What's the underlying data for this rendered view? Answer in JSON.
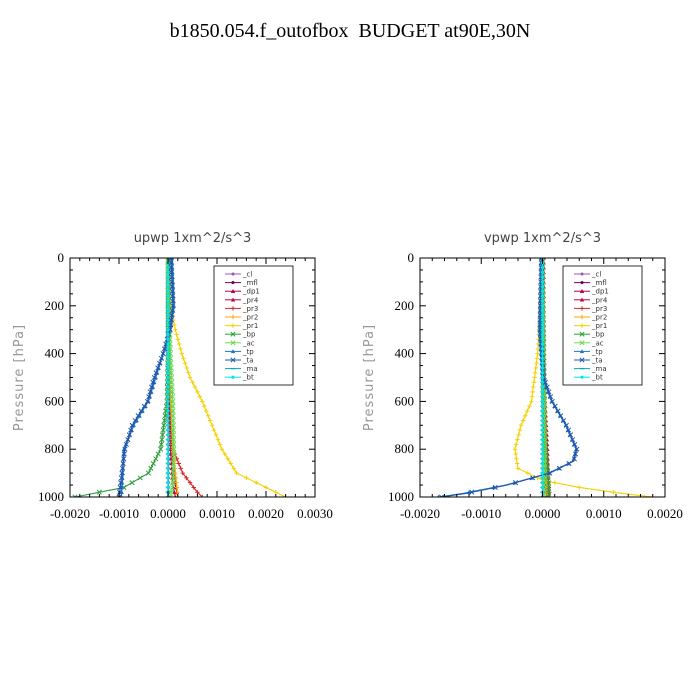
{
  "title": "b1850.054.f_outofbox  BUDGET at90E,30N",
  "chart_data": [
    {
      "type": "line",
      "title": "upwp   1xm^2/s^3",
      "ylabel": "Pressure  [hPa]",
      "xlim": [
        -0.002,
        0.003
      ],
      "ylim": [
        1000,
        0
      ],
      "xticks": [
        -0.002,
        -0.001,
        0.0,
        0.001,
        0.002,
        0.003
      ],
      "xtick_labels": [
        "-0.0020",
        "-0.0010",
        "0.0000",
        "0.0010",
        "0.0020",
        "0.0030"
      ],
      "yticks": [
        0,
        200,
        400,
        600,
        800,
        1000
      ],
      "ytick_labels": [
        "0",
        "200",
        "400",
        "600",
        "800",
        "1000"
      ],
      "legend_position": "top-right",
      "series": [
        {
          "name": "_cl",
          "color": "#9b59b6",
          "marker": "circle",
          "x": [
            1e-05,
            1e-05,
            1e-05,
            1e-05,
            1e-05,
            1e-05
          ],
          "y": [
            0,
            200,
            400,
            600,
            800,
            1000
          ]
        },
        {
          "name": "_mfl",
          "color": "#7b0066",
          "marker": "circle",
          "x": [
            0.0,
            0.0,
            0.0,
            0.0,
            0.0,
            0.0
          ],
          "y": [
            0,
            200,
            400,
            600,
            800,
            1000
          ]
        },
        {
          "name": "_dp1",
          "color": "#b0004f",
          "marker": "tri",
          "x": [
            2e-05,
            2e-05,
            3e-05,
            4e-05,
            8e-05,
            0.00015,
            0.0002
          ],
          "y": [
            0,
            200,
            400,
            600,
            800,
            950,
            1000
          ]
        },
        {
          "name": "_pr4",
          "color": "#c0003a",
          "marker": "tri",
          "x": [
            0.0,
            0.0,
            0.0,
            2e-05,
            5e-05,
            0.0001,
            0.00015
          ],
          "y": [
            0,
            200,
            400,
            600,
            800,
            950,
            1000
          ]
        },
        {
          "name": "_pr3",
          "color": "#d62828",
          "marker": "plus",
          "x": [
            0.0,
            0.0,
            1e-05,
            5e-05,
            0.0001,
            0.0003,
            0.0006,
            0.0007
          ],
          "y": [
            0,
            200,
            400,
            600,
            800,
            900,
            980,
            1000
          ]
        },
        {
          "name": "_pr2",
          "color": "#ffa500",
          "marker": "plus",
          "x": [
            0.0,
            1e-05,
            2e-05,
            5e-05,
            0.0001,
            0.0002
          ],
          "y": [
            0,
            200,
            400,
            600,
            800,
            1000
          ]
        },
        {
          "name": "_pr1",
          "color": "#f5d000",
          "marker": "plus",
          "x": [
            -2e-05,
            5e-05,
            0.00015,
            0.00028,
            0.00045,
            0.0007,
            0.0009,
            0.0011,
            0.0014,
            0.0024
          ],
          "y": [
            0,
            200,
            300,
            400,
            500,
            600,
            700,
            800,
            900,
            1000
          ]
        },
        {
          "name": "_bp",
          "color": "#2e9e3a",
          "marker": "cross",
          "x": [
            0.0,
            0.0,
            0.0,
            -2e-05,
            -0.00015,
            -0.0004,
            -0.0009,
            -0.0019
          ],
          "y": [
            0,
            200,
            400,
            600,
            800,
            900,
            960,
            1000
          ]
        },
        {
          "name": "_ac",
          "color": "#66dd55",
          "marker": "cross",
          "x": [
            0.0,
            2e-05,
            5e-05,
            0.0001,
            0.00012,
            0.0001,
            5e-05
          ],
          "y": [
            0,
            200,
            400,
            600,
            800,
            950,
            1000
          ]
        },
        {
          "name": "_tp",
          "color": "#1b78c8",
          "marker": "tri",
          "x": [
            8e-05,
            0.00012,
            5e-05,
            -0.0001,
            -0.00025,
            -0.0004,
            -0.00055,
            -0.0007,
            -0.0009,
            -0.00095
          ],
          "y": [
            0,
            200,
            300,
            400,
            500,
            600,
            650,
            700,
            800,
            1000
          ]
        },
        {
          "name": "_ta",
          "color": "#2255aa",
          "marker": "cross",
          "x": [
            6e-05,
            0.0001,
            4e-05,
            -0.0001,
            -0.00028,
            -0.00042,
            -0.00058,
            -0.00073,
            -0.00088,
            -0.001
          ],
          "y": [
            0,
            200,
            300,
            400,
            500,
            600,
            650,
            700,
            800,
            1000
          ]
        },
        {
          "name": "_ma",
          "color": "#00aaaa",
          "marker": "dash",
          "x": [
            0.0,
            0.0,
            0.0,
            0.0,
            0.0,
            0.0
          ],
          "y": [
            0,
            200,
            400,
            600,
            800,
            1000
          ]
        },
        {
          "name": "_bt",
          "color": "#00e5e5",
          "marker": "circle",
          "x": [
            0.0,
            0.0,
            0.0,
            0.0,
            0.0,
            0.0
          ],
          "y": [
            0,
            200,
            400,
            600,
            800,
            1000
          ]
        }
      ]
    },
    {
      "type": "line",
      "title": "vpwp   1xm^2/s^3",
      "ylabel": "Pressure  [hPa]",
      "xlim": [
        -0.002,
        0.002
      ],
      "ylim": [
        1000,
        0
      ],
      "xticks": [
        -0.002,
        -0.001,
        0.0,
        0.001,
        0.002
      ],
      "xtick_labels": [
        "-0.0020",
        "-0.0010",
        "0.0000",
        "0.0010",
        "0.0020"
      ],
      "yticks": [
        0,
        200,
        400,
        600,
        800,
        1000
      ],
      "ytick_labels": [
        "0",
        "200",
        "400",
        "600",
        "800",
        "1000"
      ],
      "legend_position": "top-right",
      "series": [
        {
          "name": "_cl",
          "color": "#9b59b6",
          "marker": "circle",
          "x": [
            1e-05,
            1e-05,
            1e-05,
            1e-05,
            1e-05,
            1e-05
          ],
          "y": [
            0,
            200,
            400,
            600,
            800,
            1000
          ]
        },
        {
          "name": "_mfl",
          "color": "#7b0066",
          "marker": "circle",
          "x": [
            0.0,
            0.0,
            0.0,
            0.0,
            0.0,
            0.0
          ],
          "y": [
            0,
            200,
            400,
            600,
            800,
            1000
          ]
        },
        {
          "name": "_dp1",
          "color": "#b0004f",
          "marker": "tri",
          "x": [
            2e-05,
            2e-05,
            3e-05,
            4e-05,
            8e-05,
            0.0001
          ],
          "y": [
            0,
            200,
            400,
            600,
            800,
            1000
          ]
        },
        {
          "name": "_pr4",
          "color": "#c0003a",
          "marker": "tri",
          "x": [
            0.0,
            0.0,
            0.0,
            1e-05,
            3e-05,
            6e-05
          ],
          "y": [
            0,
            200,
            400,
            600,
            800,
            1000
          ]
        },
        {
          "name": "_pr3",
          "color": "#d62828",
          "marker": "plus",
          "x": [
            0.0,
            0.0,
            1e-05,
            3e-05,
            6e-05,
            0.0001,
            0.00012
          ],
          "y": [
            0,
            200,
            400,
            600,
            800,
            950,
            1000
          ]
        },
        {
          "name": "_pr2",
          "color": "#ffa500",
          "marker": "plus",
          "x": [
            0.0,
            0.0,
            1e-05,
            2e-05,
            4e-05,
            8e-05
          ],
          "y": [
            0,
            200,
            400,
            600,
            800,
            1000
          ]
        },
        {
          "name": "_pr1",
          "color": "#f5d000",
          "marker": "plus",
          "x": [
            0.0,
            -3e-05,
            -8e-05,
            -0.00018,
            -0.00035,
            -0.00045,
            -0.0004,
            0.0,
            0.0006,
            0.0013,
            0.0018
          ],
          "y": [
            0,
            200,
            400,
            600,
            700,
            800,
            880,
            930,
            960,
            985,
            1000
          ]
        },
        {
          "name": "_bp",
          "color": "#2e9e3a",
          "marker": "cross",
          "x": [
            0.0,
            0.0,
            0.0,
            2e-05,
            5e-05,
            0.0001,
            0.0001
          ],
          "y": [
            0,
            200,
            400,
            600,
            800,
            950,
            1000
          ]
        },
        {
          "name": "_ac",
          "color": "#66dd55",
          "marker": "cross",
          "x": [
            0.0,
            1e-05,
            2e-05,
            3e-05,
            4e-05,
            3e-05
          ],
          "y": [
            0,
            200,
            400,
            600,
            800,
            1000
          ]
        },
        {
          "name": "_tp",
          "color": "#1b78c8",
          "marker": "tri",
          "x": [
            -2e-05,
            -5e-05,
            0.0,
            0.00015,
            0.00038,
            0.00055,
            0.0005,
            0.0001,
            -0.0006,
            -0.0013,
            -0.0017
          ],
          "y": [
            0,
            300,
            500,
            600,
            700,
            800,
            850,
            900,
            950,
            985,
            1000
          ]
        },
        {
          "name": "_ta",
          "color": "#2255aa",
          "marker": "cross",
          "x": [
            -2e-05,
            -4e-05,
            2e-05,
            0.00016,
            0.00039,
            0.00056,
            0.00051,
            0.00012,
            -0.00058,
            -0.00125,
            -0.00165
          ],
          "y": [
            0,
            300,
            500,
            600,
            700,
            800,
            850,
            900,
            950,
            985,
            1000
          ]
        },
        {
          "name": "_ma",
          "color": "#00aaaa",
          "marker": "dash",
          "x": [
            0.0,
            0.0,
            0.0,
            0.0,
            0.0,
            0.0
          ],
          "y": [
            0,
            200,
            400,
            600,
            800,
            1000
          ]
        },
        {
          "name": "_bt",
          "color": "#00e5e5",
          "marker": "circle",
          "x": [
            0.0,
            0.0,
            0.0,
            0.0,
            0.0,
            0.0
          ],
          "y": [
            0,
            200,
            400,
            600,
            800,
            1000
          ]
        }
      ]
    }
  ]
}
